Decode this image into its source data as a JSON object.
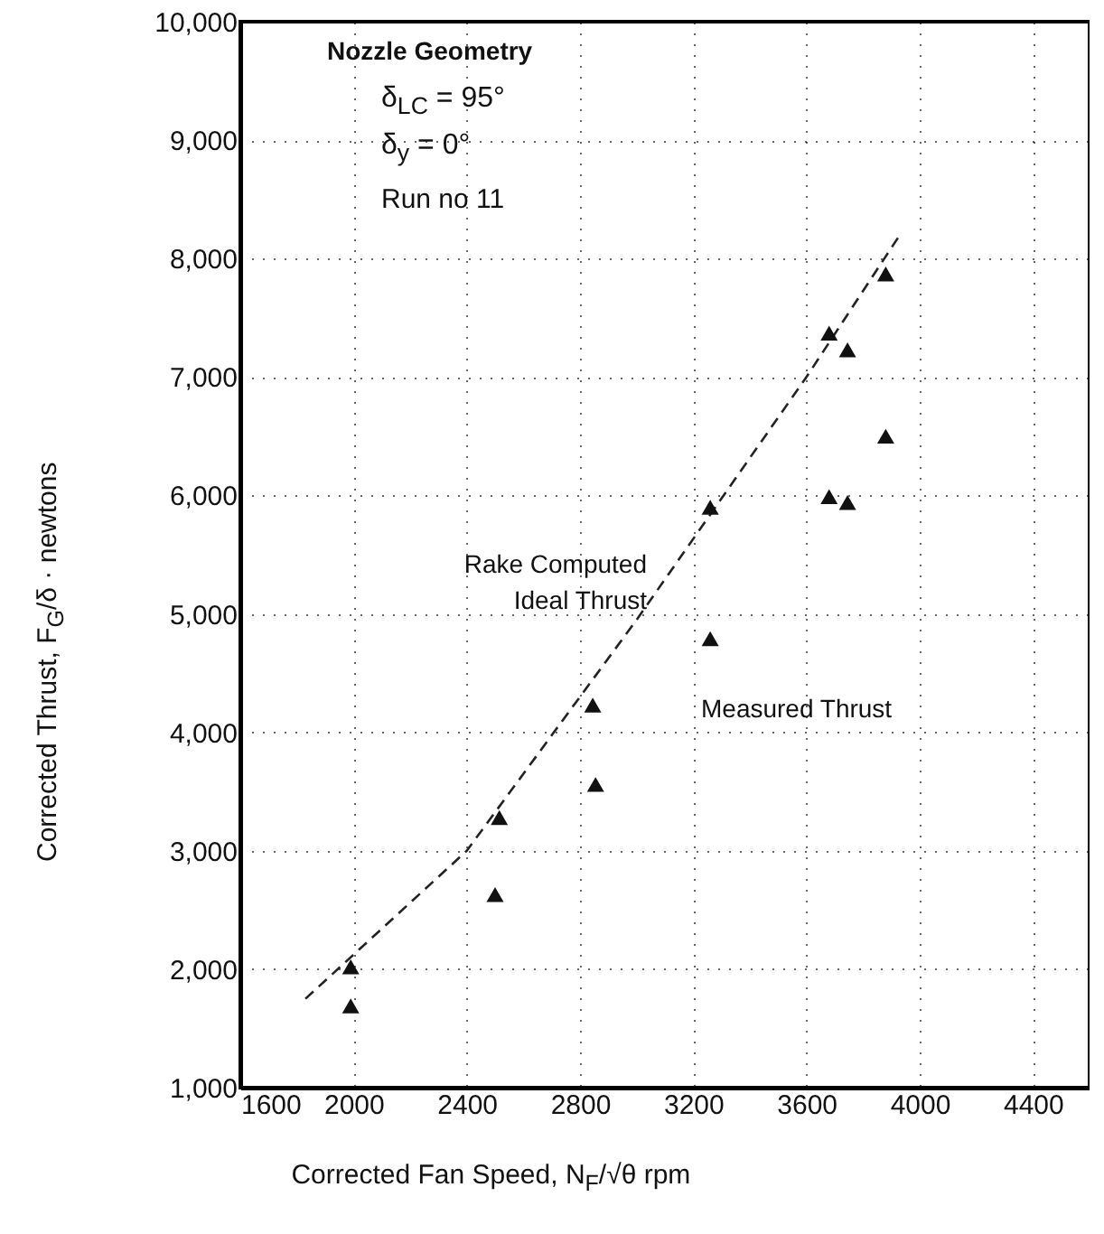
{
  "chart_data": {
    "type": "scatter",
    "xlabel": "Corrected Fan Speed, N$_{F}$/√θ  rpm",
    "ylabel": "Corrected Thrust, F$_{G}$/δ · newtons",
    "xlim": [
      1600,
      4600
    ],
    "ylim": [
      1000,
      10000
    ],
    "xticks": [
      1600,
      2000,
      2400,
      2800,
      3200,
      3600,
      4000,
      4400
    ],
    "yticks": [
      {
        "value": 1000,
        "label": "1,000"
      },
      {
        "value": 2000,
        "label": "2,000"
      },
      {
        "value": 3000,
        "label": "3,000"
      },
      {
        "value": 4000,
        "label": "4,000"
      },
      {
        "value": 5000,
        "label": "5,000"
      },
      {
        "value": 6000,
        "label": "6,000"
      },
      {
        "value": 7000,
        "label": "7,000"
      },
      {
        "value": 8000,
        "label": "8,000"
      },
      {
        "value": 9000,
        "label": "9,000"
      },
      {
        "value": 10000,
        "label": "10,000"
      }
    ],
    "grid": true,
    "marker": "triangle",
    "series": [
      {
        "type": "line",
        "color": "#222222",
        "line_style": "dashed",
        "marker": "none",
        "x": [
          1830,
          2400,
          3000,
          3600,
          3930
        ],
        "values": [
          1750,
          3000,
          4950,
          7000,
          8200
        ]
      },
      {
        "color": "#111111",
        "x": [
          1990,
          1990,
          2500,
          2515,
          2845,
          2855,
          3260,
          3260,
          3680,
          3680,
          3745,
          3745,
          3880,
          3880
        ],
        "values": [
          2020,
          1690,
          2630,
          3280,
          4230,
          3560,
          4790,
          5900,
          7370,
          5990,
          7230,
          5940,
          7870,
          6500
        ]
      }
    ],
    "annotations": [
      "Nozzle Geometry",
      "δ$_{LC}$ = 95°",
      "δ$_{y}$ = 0°",
      "Run no 11",
      "Rake Computed Ideal Thrust",
      "Measured Thrust"
    ]
  }
}
